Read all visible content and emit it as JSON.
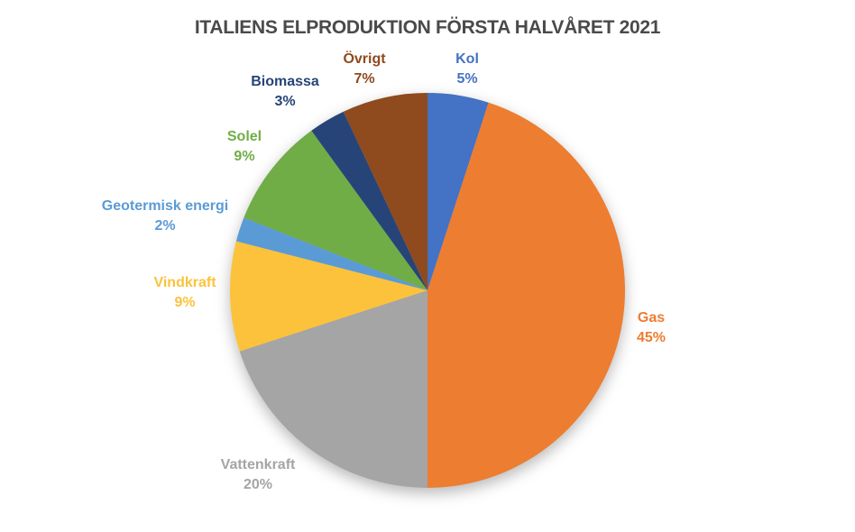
{
  "chart_data": {
    "type": "pie",
    "title": "ITALIENS ELPRODUKTION FÖRSTA HALVÅRET 2021",
    "title_color": "#4a4a4a",
    "background_color": "#ffffff",
    "legend_position": "none",
    "label_style": "outside labels: category name and percent, colored to match slice",
    "start_angle_deg_from_top": 0,
    "direction": "clockwise",
    "slices": [
      {
        "label": "Kol",
        "percent": 5,
        "display": "5%",
        "color": "#4472C4"
      },
      {
        "label": "Gas",
        "percent": 45,
        "display": "45%",
        "color": "#ED7D31"
      },
      {
        "label": "Vattenkraft",
        "percent": 20,
        "display": "20%",
        "color": "#A5A5A5"
      },
      {
        "label": "Vindkraft",
        "percent": 9,
        "display": "9%",
        "color": "#FCC23C"
      },
      {
        "label": "Geotermisk energi",
        "percent": 2,
        "display": "2%",
        "color": "#5B9BD5"
      },
      {
        "label": "Solel",
        "percent": 9,
        "display": "9%",
        "color": "#70AD47"
      },
      {
        "label": "Biomassa",
        "percent": 3,
        "display": "3%",
        "color": "#264478"
      },
      {
        "label": "Övrigt",
        "percent": 7,
        "display": "7%",
        "color": "#8F4A1E"
      }
    ]
  }
}
